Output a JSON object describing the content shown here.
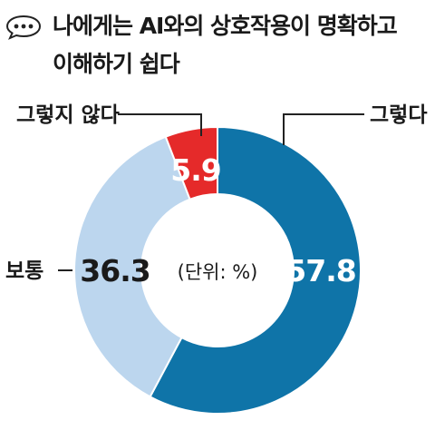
{
  "title": {
    "line1": "나에게는 AI와의 상호작용이 명확하고",
    "line2": "이해하기 쉽다",
    "icon": "speech-bubble-ellipsis-icon"
  },
  "chart_data": {
    "type": "pie",
    "style": "donut",
    "unit_note": "(단위: %)",
    "slices": [
      {
        "label": "그렇다",
        "value": 57.8,
        "value_label": "57.8",
        "color": "#0f74a8"
      },
      {
        "label": "보통",
        "value": 36.3,
        "value_label": "36.3",
        "color": "#bcd6ee"
      },
      {
        "label": "그렇지 않다",
        "value": 5.9,
        "value_label": "5.9",
        "color": "#e52a2a"
      }
    ]
  }
}
